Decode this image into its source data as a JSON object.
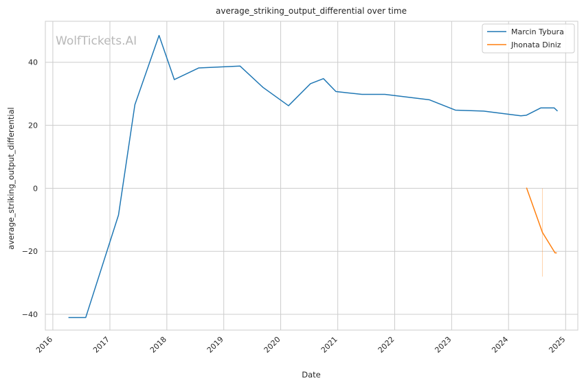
{
  "watermark": "WolfTickets.AI",
  "chart_data": {
    "type": "line",
    "title": "average_striking_output_differential over time",
    "xlabel": "Date",
    "ylabel": "average_striking_output_differential",
    "xlim": [
      "2015-11-14",
      "2025-03-20"
    ],
    "ylim": [
      -45,
      53
    ],
    "x_ticks": [
      "2016",
      "2017",
      "2018",
      "2019",
      "2020",
      "2021",
      "2022",
      "2023",
      "2024",
      "2025"
    ],
    "y_ticks": [
      -40,
      -20,
      0,
      20,
      40
    ],
    "grid": true,
    "legend_position": "top-right",
    "series": [
      {
        "name": "Marcin Tybura",
        "color": "#1f77b4",
        "points": [
          [
            "2016-04-10",
            -41
          ],
          [
            "2016-07-30",
            -41
          ],
          [
            "2017-02-25",
            -8.5
          ],
          [
            "2017-06-10",
            26.5
          ],
          [
            "2017-11-12",
            48.5
          ],
          [
            "2018-02-18",
            34.5
          ],
          [
            "2018-07-25",
            38.2
          ],
          [
            "2019-04-15",
            38.8
          ],
          [
            "2019-09-10",
            32
          ],
          [
            "2020-02-20",
            26.2
          ],
          [
            "2020-07-10",
            33.2
          ],
          [
            "2020-10-01",
            34.8
          ],
          [
            "2020-12-20",
            30.7
          ],
          [
            "2021-06-05",
            29.8
          ],
          [
            "2021-10-30",
            29.8
          ],
          [
            "2022-08-10",
            28.1
          ],
          [
            "2023-01-25",
            24.8
          ],
          [
            "2023-07-25",
            24.5
          ],
          [
            "2024-03-20",
            23
          ],
          [
            "2024-04-25",
            23.2
          ],
          [
            "2024-07-25",
            25.5
          ],
          [
            "2024-10-20",
            25.5
          ],
          [
            "2024-11-10",
            24.5
          ]
        ]
      },
      {
        "name": "Jhonata Diniz",
        "color": "#ff7f0e",
        "points": [
          [
            "2024-04-25",
            0.2
          ],
          [
            "2024-08-05",
            -14
          ],
          [
            "2024-10-25",
            -20.5
          ],
          [
            "2024-11-05",
            -20.5
          ]
        ],
        "faint_marker": {
          "x": "2024-08-05",
          "y_range": [
            -28,
            0
          ]
        }
      }
    ]
  }
}
